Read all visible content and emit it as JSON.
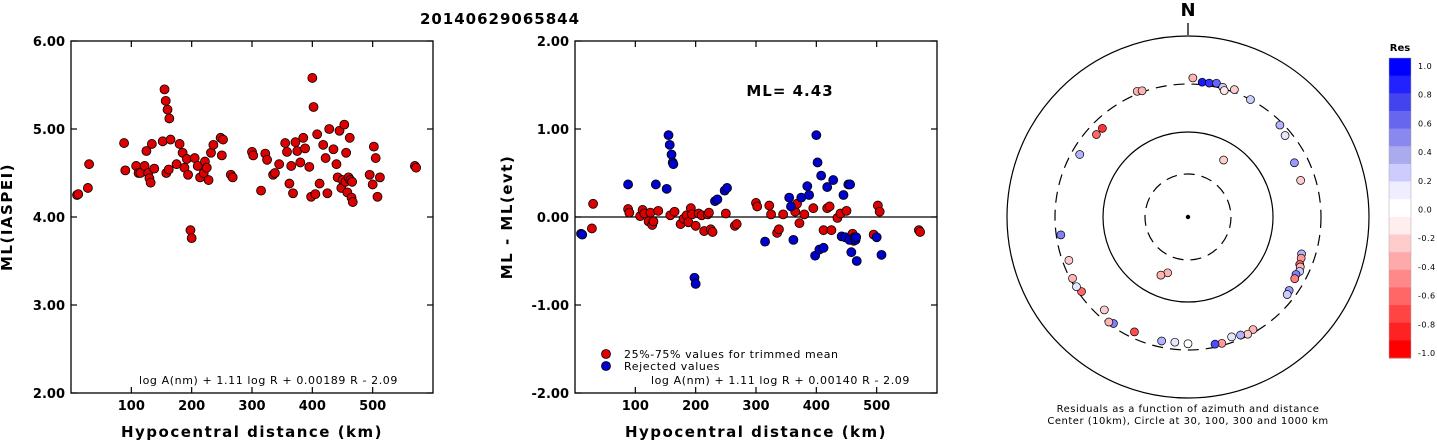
{
  "figure_title": "20140629065844",
  "chart_data": [
    {
      "type": "scatter",
      "xlabel": "Hypocentral distance (km)",
      "ylabel": "ML(IASPEI)",
      "xlim": [
        0,
        600
      ],
      "ylim": [
        2.0,
        6.0
      ],
      "xticks": [
        "100",
        "200",
        "300",
        "400",
        "500"
      ],
      "yticks": [
        "2.00",
        "3.00",
        "4.00",
        "5.00",
        "6.00"
      ],
      "formula": "log A(nm) + 1.11 log R + 0.00189 R - 2.09",
      "series": [
        {
          "color": "#dd0000",
          "points": [
            [
              10,
              4.25
            ],
            [
              12,
              4.26
            ],
            [
              28,
              4.33
            ],
            [
              30,
              4.6
            ],
            [
              88,
              4.84
            ],
            [
              90,
              4.53
            ],
            [
              108,
              4.58
            ],
            [
              112,
              4.5
            ],
            [
              115,
              4.5
            ],
            [
              122,
              4.58
            ],
            [
              125,
              4.75
            ],
            [
              128,
              4.5
            ],
            [
              130,
              4.44
            ],
            [
              132,
              4.39
            ],
            [
              134,
              4.83
            ],
            [
              138,
              4.55
            ],
            [
              152,
              4.86
            ],
            [
              155,
              5.45
            ],
            [
              157,
              5.32
            ],
            [
              158,
              4.5
            ],
            [
              160,
              5.22
            ],
            [
              162,
              4.54
            ],
            [
              163,
              5.12
            ],
            [
              165,
              4.88
            ],
            [
              175,
              4.6
            ],
            [
              180,
              4.83
            ],
            [
              185,
              4.73
            ],
            [
              188,
              4.56
            ],
            [
              192,
              4.66
            ],
            [
              194,
              4.48
            ],
            [
              198,
              3.85
            ],
            [
              200,
              3.76
            ],
            [
              205,
              4.67
            ],
            [
              210,
              4.58
            ],
            [
              214,
              4.45
            ],
            [
              220,
              4.5
            ],
            [
              222,
              4.63
            ],
            [
              225,
              4.56
            ],
            [
              228,
              4.42
            ],
            [
              232,
              4.73
            ],
            [
              236,
              4.82
            ],
            [
              248,
              4.9
            ],
            [
              250,
              4.7
            ],
            [
              252,
              4.88
            ],
            [
              265,
              4.48
            ],
            [
              268,
              4.45
            ],
            [
              300,
              4.74
            ],
            [
              302,
              4.7
            ],
            [
              315,
              4.3
            ],
            [
              322,
              4.72
            ],
            [
              325,
              4.65
            ],
            [
              335,
              4.48
            ],
            [
              338,
              4.5
            ],
            [
              345,
              4.6
            ],
            [
              355,
              4.84
            ],
            [
              358,
              4.74
            ],
            [
              362,
              4.38
            ],
            [
              365,
              4.58
            ],
            [
              368,
              4.27
            ],
            [
              372,
              4.85
            ],
            [
              375,
              4.75
            ],
            [
              380,
              4.62
            ],
            [
              385,
              4.9
            ],
            [
              388,
              4.78
            ],
            [
              395,
              4.57
            ],
            [
              398,
              4.23
            ],
            [
              400,
              5.58
            ],
            [
              402,
              5.25
            ],
            [
              405,
              4.26
            ],
            [
              408,
              4.94
            ],
            [
              412,
              4.38
            ],
            [
              418,
              4.82
            ],
            [
              422,
              4.67
            ],
            [
              425,
              4.27
            ],
            [
              428,
              5.0
            ],
            [
              435,
              4.77
            ],
            [
              440,
              4.6
            ],
            [
              442,
              4.45
            ],
            [
              445,
              4.98
            ],
            [
              448,
              4.33
            ],
            [
              450,
              4.42
            ],
            [
              453,
              5.05
            ],
            [
              455,
              4.4
            ],
            [
              456,
              4.73
            ],
            [
              458,
              4.28
            ],
            [
              460,
              4.45
            ],
            [
              462,
              4.9
            ],
            [
              463,
              4.42
            ],
            [
              465,
              4.22
            ],
            [
              466,
              4.4
            ],
            [
              467,
              4.17
            ],
            [
              495,
              4.48
            ],
            [
              500,
              4.37
            ],
            [
              502,
              4.8
            ],
            [
              505,
              4.67
            ],
            [
              508,
              4.23
            ],
            [
              512,
              4.45
            ],
            [
              570,
              4.58
            ],
            [
              572,
              4.56
            ]
          ]
        }
      ]
    },
    {
      "type": "scatter",
      "xlabel": "Hypocentral distance (km)",
      "ylabel": "ML - ML(evt)",
      "xlim": [
        0,
        600
      ],
      "ylim": [
        -2.0,
        2.0
      ],
      "xticks": [
        "100",
        "200",
        "300",
        "400",
        "500"
      ],
      "yticks": [
        "-2.00",
        "-1.00",
        "0.00",
        "1.00",
        "2.00"
      ],
      "reference_line": 0.0,
      "annotation": "ML= 4.43",
      "formula": "log A(nm) + 1.11 log R + 0.00140 R - 2.09",
      "series": [
        {
          "name": "25%-75% values for trimmed mean",
          "color": "#dd0000",
          "points": [
            [
              28,
              -0.13
            ],
            [
              30,
              0.15
            ],
            [
              88,
              0.09
            ],
            [
              90,
              0.05
            ],
            [
              108,
              0.01
            ],
            [
              112,
              0.08
            ],
            [
              115,
              0.04
            ],
            [
              122,
              -0.05
            ],
            [
              125,
              0.05
            ],
            [
              128,
              -0.09
            ],
            [
              130,
              -0.05
            ],
            [
              138,
              0.07
            ],
            [
              158,
              0.02
            ],
            [
              165,
              0.06
            ],
            [
              175,
              -0.08
            ],
            [
              180,
              -0.02
            ],
            [
              185,
              0.02
            ],
            [
              188,
              -0.06
            ],
            [
              192,
              0.1
            ],
            [
              194,
              0.03
            ],
            [
              200,
              -0.1
            ],
            [
              205,
              0.04
            ],
            [
              210,
              0.02
            ],
            [
              214,
              -0.16
            ],
            [
              220,
              0.03
            ],
            [
              222,
              0.05
            ],
            [
              225,
              -0.14
            ],
            [
              228,
              -0.17
            ],
            [
              250,
              0.04
            ],
            [
              265,
              -0.1
            ],
            [
              268,
              -0.08
            ],
            [
              300,
              0.16
            ],
            [
              302,
              0.12
            ],
            [
              322,
              0.13
            ],
            [
              325,
              0.03
            ],
            [
              335,
              -0.18
            ],
            [
              338,
              -0.14
            ],
            [
              345,
              0.03
            ],
            [
              365,
              0.06
            ],
            [
              368,
              0.15
            ],
            [
              372,
              -0.07
            ],
            [
              380,
              0.03
            ],
            [
              395,
              0.1
            ],
            [
              412,
              -0.15
            ],
            [
              418,
              0.1
            ],
            [
              422,
              0.12
            ],
            [
              425,
              -0.15
            ],
            [
              435,
              -0.01
            ],
            [
              440,
              0.04
            ],
            [
              450,
              0.07
            ],
            [
              460,
              -0.19
            ],
            [
              462,
              -0.27
            ],
            [
              495,
              -0.2
            ],
            [
              502,
              0.13
            ],
            [
              505,
              0.06
            ],
            [
              570,
              -0.15
            ],
            [
              572,
              -0.17
            ]
          ]
        },
        {
          "name": "Rejected values",
          "color": "#0000cc",
          "points": [
            [
              10,
              -0.19
            ],
            [
              12,
              -0.2
            ],
            [
              88,
              0.37
            ],
            [
              134,
              0.37
            ],
            [
              152,
              0.32
            ],
            [
              155,
              0.93
            ],
            [
              157,
              0.82
            ],
            [
              160,
              0.71
            ],
            [
              162,
              0.62
            ],
            [
              163,
              0.6
            ],
            [
              198,
              -0.69
            ],
            [
              200,
              -0.76
            ],
            [
              232,
              0.18
            ],
            [
              236,
              0.2
            ],
            [
              248,
              0.3
            ],
            [
              252,
              0.33
            ],
            [
              315,
              -0.28
            ],
            [
              355,
              0.22
            ],
            [
              358,
              0.12
            ],
            [
              362,
              -0.26
            ],
            [
              375,
              0.22
            ],
            [
              385,
              0.35
            ],
            [
              388,
              0.25
            ],
            [
              398,
              -0.44
            ],
            [
              400,
              0.93
            ],
            [
              402,
              0.62
            ],
            [
              405,
              -0.37
            ],
            [
              408,
              0.47
            ],
            [
              412,
              -0.35
            ],
            [
              418,
              0.34
            ],
            [
              428,
              0.42
            ],
            [
              442,
              -0.22
            ],
            [
              445,
              0.25
            ],
            [
              448,
              -0.23
            ],
            [
              453,
              0.37
            ],
            [
              455,
              -0.26
            ],
            [
              456,
              0.37
            ],
            [
              458,
              -0.4
            ],
            [
              463,
              -0.23
            ],
            [
              465,
              -0.26
            ],
            [
              466,
              -0.23
            ],
            [
              467,
              -0.5
            ],
            [
              500,
              -0.23
            ],
            [
              508,
              -0.43
            ]
          ]
        }
      ]
    },
    {
      "type": "scatter",
      "title": "N",
      "caption_line1": "Residuals as a function of azimuth and distance",
      "caption_line2": "Center (10km), Circle at 30, 100, 300 and 1000 km",
      "colorbar_label": "Res",
      "colorbar_ticks": [
        "1.0",
        "0.8",
        "0.6",
        "0.4",
        "0.2",
        "0.0",
        "-0.2",
        "-0.4",
        "-0.6",
        "-0.8",
        "-1.0"
      ],
      "colorbar_colors": [
        "#0000ff",
        "#2222ff",
        "#4444ee",
        "#6666ee",
        "#8888ee",
        "#aaaaee",
        "#ccccff",
        "#eeeeff",
        "#ffffff",
        "#ffeeee",
        "#ffcccc",
        "#ffaaaa",
        "#ff8888",
        "#ff6666",
        "#ff4444",
        "#ff2222",
        "#ff0000"
      ],
      "columns": [
        "azimuth_deg",
        "distance_km",
        "residual"
      ],
      "points": [
        [
          2,
          350,
          -0.3
        ],
        [
          6,
          320,
          0.9
        ],
        [
          9,
          320,
          0.8
        ],
        [
          12,
          330,
          0.6
        ],
        [
          15,
          310,
          0.2
        ],
        [
          16,
          290,
          -0.1
        ],
        [
          20,
          320,
          -0.2
        ],
        [
          28,
          300,
          0.2
        ],
        [
          45,
          280,
          0.3
        ],
        [
          50,
          260,
          0.1
        ],
        [
          63,
          220,
          0.4
        ],
        [
          72,
          215,
          -0.2
        ],
        [
          108,
          220,
          0.3
        ],
        [
          110,
          225,
          -0.4
        ],
        [
          113,
          230,
          -0.6
        ],
        [
          114,
          238,
          -0.3
        ],
        [
          116,
          245,
          0.2
        ],
        [
          118,
          235,
          0.5
        ],
        [
          120,
          240,
          -0.5
        ],
        [
          126,
          250,
          0.4
        ],
        [
          128,
          255,
          0.2
        ],
        [
          150,
          280,
          -0.3
        ],
        [
          153,
          290,
          -0.2
        ],
        [
          156,
          275,
          0.3
        ],
        [
          160,
          265,
          0.1
        ],
        [
          165,
          285,
          -0.4
        ],
        [
          168,
          280,
          0.7
        ],
        [
          180,
          260,
          0.0
        ],
        [
          186,
          255,
          0.1
        ],
        [
          192,
          260,
          0.3
        ],
        [
          205,
          260,
          -0.7
        ],
        [
          215,
          280,
          0.5
        ],
        [
          217,
          290,
          -0.3
        ],
        [
          222,
          250,
          -0.2
        ],
        [
          235,
          280,
          -0.6
        ],
        [
          238,
          290,
          0.1
        ],
        [
          242,
          285,
          -0.3
        ],
        [
          250,
          260,
          -0.2
        ],
        [
          262,
          270,
          0.5
        ],
        [
          300,
          250,
          0.3
        ],
        [
          312,
          240,
          -0.6
        ],
        [
          316,
          240,
          -0.8
        ],
        [
          338,
          320,
          -0.3
        ],
        [
          340,
          310,
          -0.3
        ],
        [
          32,
          60,
          -0.2
        ],
        [
          200,
          48,
          -0.3
        ],
        [
          205,
          55,
          -0.3
        ]
      ]
    }
  ]
}
